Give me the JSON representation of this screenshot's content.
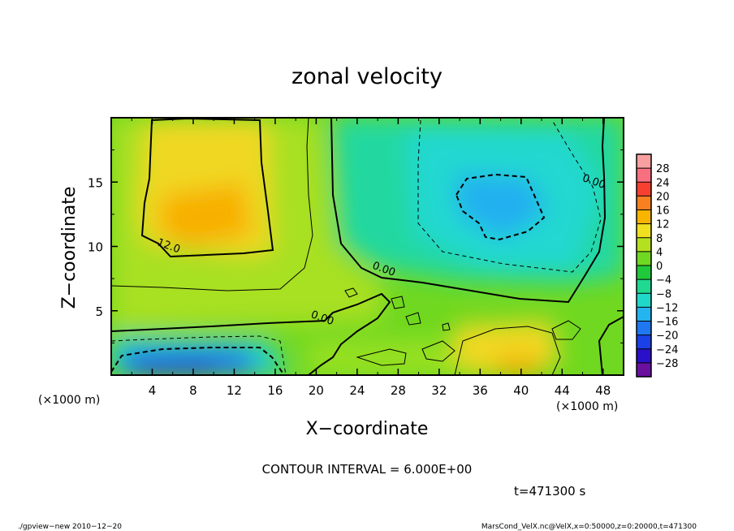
{
  "chart_data": {
    "type": "heatmap",
    "title": "zonal velocity",
    "xlabel": "X−coordinate",
    "ylabel": "Z−coordinate",
    "x_unit_left": "(×1000 m)",
    "x_unit_right": "(×1000 m)",
    "xlim": [
      0,
      50
    ],
    "ylim": [
      0,
      20
    ],
    "x_ticks": [
      4,
      8,
      12,
      16,
      20,
      24,
      28,
      32,
      36,
      40,
      44,
      48
    ],
    "x_tick_labels": [
      "4",
      "8",
      "12",
      "16",
      "20",
      "24",
      "28",
      "32",
      "36",
      "40",
      "44",
      "48"
    ],
    "y_ticks": [
      5,
      10,
      15
    ],
    "y_tick_labels": [
      "5",
      "10",
      "15"
    ],
    "colorbar": {
      "levels": [
        -28,
        -24,
        -20,
        -16,
        -12,
        -8,
        -4,
        0,
        4,
        8,
        12,
        16,
        20,
        24,
        28
      ],
      "labels": [
        "−28",
        "−24",
        "−20",
        "−16",
        "−12",
        "−8",
        "−4",
        "0",
        "4",
        "8",
        "12",
        "16",
        "20",
        "24",
        "28"
      ],
      "colors": [
        "#6a0f9e",
        "#2a10c8",
        "#1a40e6",
        "#1f78f0",
        "#24b4f0",
        "#20d8c8",
        "#20d890",
        "#20c83c",
        "#70d820",
        "#b4e020",
        "#f0e020",
        "#f8b400",
        "#f88020",
        "#f84030",
        "#f87080",
        "#f8a0a0"
      ]
    },
    "field_features": [
      {
        "x": 10,
        "z": 12,
        "value": 16
      },
      {
        "x": 38,
        "z": 13,
        "value": -12
      },
      {
        "x": 8,
        "z": 1,
        "value": -22
      },
      {
        "x": 38,
        "z": 3,
        "value": 10
      },
      {
        "x": 22,
        "z": 8,
        "value": 4
      }
    ],
    "contour_labels": [
      {
        "text": "12.0",
        "x": 5.5,
        "z": 9.8
      },
      {
        "text": "0.00",
        "x": 26.5,
        "z": 8.0
      },
      {
        "text": "0.00",
        "x": 20.5,
        "z": 4.2
      },
      {
        "text": "0.00",
        "x": 47,
        "z": 14.8
      }
    ]
  },
  "contour_interval": "CONTOUR INTERVAL = 6.000E+00",
  "time_label": "t=471300 s",
  "footer_left": "./gpview−new  2010−12−20",
  "footer_right": "MarsCond_VelX.nc@VelX,x=0:50000,z=0:20000,t=471300"
}
